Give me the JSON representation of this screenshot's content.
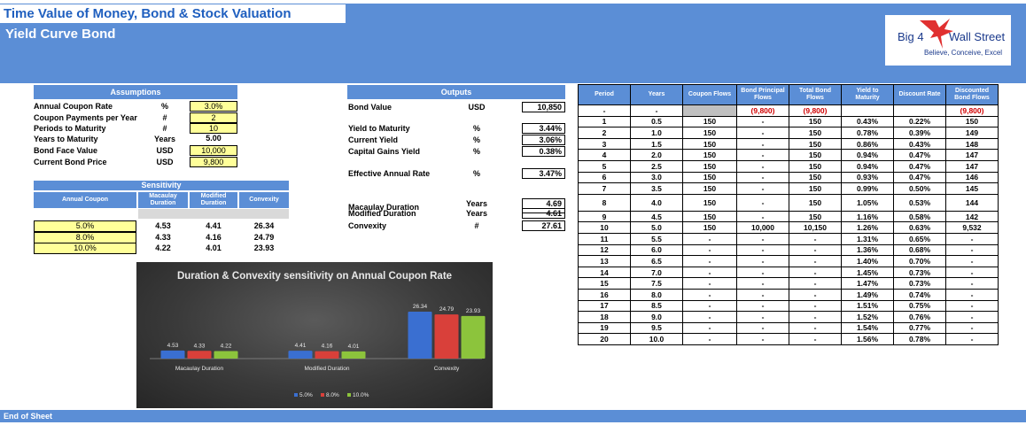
{
  "header": {
    "title": "Time Value of Money, Bond & Stock Valuation",
    "subtitle": "Yield Curve Bond",
    "logo_main_1": "Big 4",
    "logo_main_2": "Wall Street",
    "logo_tagline": "Believe, Conceive, Excel"
  },
  "assumptions": {
    "title": "Assumptions",
    "rows": [
      {
        "label": "Annual Coupon Rate",
        "unit": "%",
        "value": "3.0%",
        "input": true
      },
      {
        "label": "Coupon Payments per Year",
        "unit": "#",
        "value": "2",
        "input": true
      },
      {
        "label": "Periods to Maturity",
        "unit": "#",
        "value": "10",
        "input": true
      },
      {
        "label": "Years to Maturity",
        "unit": "Years",
        "value": "5.00",
        "input": false
      },
      {
        "label": "Bond Face Value",
        "unit": "USD",
        "value": "10,000",
        "input": true
      },
      {
        "label": "Current Bond Price",
        "unit": "USD",
        "value": "9,800",
        "input": true
      }
    ]
  },
  "sensitivity": {
    "title": "Sensitivity",
    "headers": [
      "Annual Coupon",
      "Macaulay Duration",
      "Modified Duration",
      "Convexity"
    ],
    "rows": [
      {
        "coupon": "5.0%",
        "mac": "4.53",
        "mod": "4.41",
        "conv": "26.34"
      },
      {
        "coupon": "8.0%",
        "mac": "4.33",
        "mod": "4.16",
        "conv": "24.79"
      },
      {
        "coupon": "10.0%",
        "mac": "4.22",
        "mod": "4.01",
        "conv": "23.93"
      }
    ]
  },
  "outputs": {
    "title": "Outputs",
    "rows": [
      {
        "label": "Bond Value",
        "unit": "USD",
        "value": "10,850"
      },
      {
        "label": "Yield to Maturity",
        "unit": "%",
        "value": "3.44%"
      },
      {
        "label": "Current Yield",
        "unit": "%",
        "value": "3.06%"
      },
      {
        "label": "Capital Gains Yield",
        "unit": "%",
        "value": "0.38%"
      },
      {
        "label": "Effective Annual Rate",
        "unit": "%",
        "value": "3.47%"
      },
      {
        "label": "Macaulay Duration",
        "unit": "Years",
        "value": "4.69"
      },
      {
        "label": "Modified Duration",
        "unit": "Years",
        "value": "4.61"
      },
      {
        "label": "Convexity",
        "unit": "#",
        "value": "27.61"
      }
    ]
  },
  "period_table": {
    "headers": [
      "Period",
      "Years",
      "Coupon Flows",
      "Bond Principal Flows",
      "Total Bond Flows",
      "Yield to Maturity",
      "Discount Rate",
      "Discounted Bond Flows"
    ],
    "initial_row": [
      "-",
      "-",
      "",
      "(9,800)",
      "(9,800)",
      "",
      "",
      "(9,800)"
    ],
    "rows": [
      [
        "1",
        "0.5",
        "150",
        "-",
        "150",
        "0.43%",
        "0.22%",
        "150"
      ],
      [
        "2",
        "1.0",
        "150",
        "-",
        "150",
        "0.78%",
        "0.39%",
        "149"
      ],
      [
        "3",
        "1.5",
        "150",
        "-",
        "150",
        "0.86%",
        "0.43%",
        "148"
      ],
      [
        "4",
        "2.0",
        "150",
        "-",
        "150",
        "0.94%",
        "0.47%",
        "147"
      ],
      [
        "5",
        "2.5",
        "150",
        "-",
        "150",
        "0.94%",
        "0.47%",
        "147"
      ],
      [
        "6",
        "3.0",
        "150",
        "-",
        "150",
        "0.93%",
        "0.47%",
        "146"
      ],
      [
        "7",
        "3.5",
        "150",
        "-",
        "150",
        "0.99%",
        "0.50%",
        "145"
      ],
      [
        "8",
        "4.0",
        "150",
        "-",
        "150",
        "1.05%",
        "0.53%",
        "144"
      ],
      [
        "9",
        "4.5",
        "150",
        "-",
        "150",
        "1.16%",
        "0.58%",
        "142"
      ],
      [
        "10",
        "5.0",
        "150",
        "10,000",
        "10,150",
        "1.26%",
        "0.63%",
        "9,532"
      ],
      [
        "11",
        "5.5",
        "-",
        "-",
        "-",
        "1.31%",
        "0.65%",
        "-"
      ],
      [
        "12",
        "6.0",
        "-",
        "-",
        "-",
        "1.36%",
        "0.68%",
        "-"
      ],
      [
        "13",
        "6.5",
        "-",
        "-",
        "-",
        "1.40%",
        "0.70%",
        "-"
      ],
      [
        "14",
        "7.0",
        "-",
        "-",
        "-",
        "1.45%",
        "0.73%",
        "-"
      ],
      [
        "15",
        "7.5",
        "-",
        "-",
        "-",
        "1.47%",
        "0.73%",
        "-"
      ],
      [
        "16",
        "8.0",
        "-",
        "-",
        "-",
        "1.49%",
        "0.74%",
        "-"
      ],
      [
        "17",
        "8.5",
        "-",
        "-",
        "-",
        "1.51%",
        "0.75%",
        "-"
      ],
      [
        "18",
        "9.0",
        "-",
        "-",
        "-",
        "1.52%",
        "0.76%",
        "-"
      ],
      [
        "19",
        "9.5",
        "-",
        "-",
        "-",
        "1.54%",
        "0.77%",
        "-"
      ],
      [
        "20",
        "10.0",
        "-",
        "-",
        "-",
        "1.56%",
        "0.78%",
        "-"
      ]
    ]
  },
  "chart_data": {
    "type": "bar",
    "title": "Duration & Convexity sensitivity on Annual Coupon Rate",
    "categories": [
      "Macaulay Duration",
      "Modified Duration",
      "Convexity"
    ],
    "series": [
      {
        "name": "5.0%",
        "color": "#3a6fd1",
        "values": [
          4.53,
          4.41,
          26.34
        ]
      },
      {
        "name": "8.0%",
        "color": "#d9403a",
        "values": [
          4.33,
          4.16,
          24.79
        ]
      },
      {
        "name": "10.0%",
        "color": "#8cc43c",
        "values": [
          4.22,
          4.01,
          23.93
        ]
      }
    ],
    "legend": "bottom",
    "grid": false
  },
  "footer": {
    "text": "End of Sheet"
  },
  "colors": {
    "accent": "#5b8ed6",
    "input": "#ffff99",
    "title": "#1f5fbf"
  }
}
